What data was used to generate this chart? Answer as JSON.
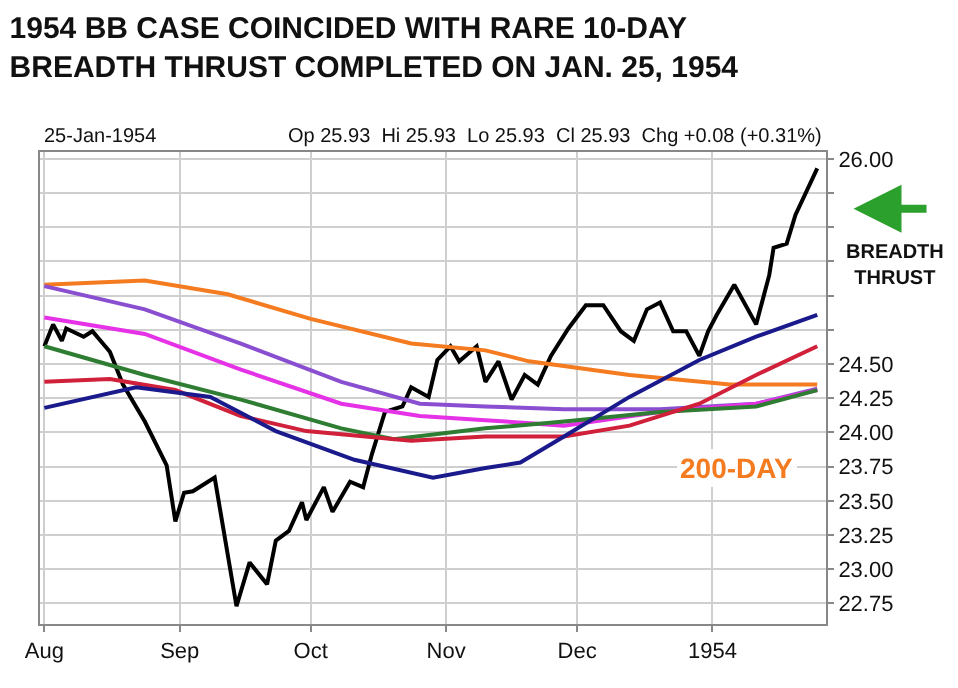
{
  "chart_data": {
    "type": "line",
    "title": "1954 BB CASE COINCIDED WITH RARE 10-DAY BREADTH THRUST COMPLETED ON JAN. 25, 1954",
    "annotations": [
      "25-Jan-1954",
      "Op 25.93  Hi 25.93  Lo 25.93  Cl 25.93  Chg +0.08 (+0.31%)",
      "BREADTH THRUST",
      "200-DAY"
    ],
    "series": [
      {
        "color": "#000000",
        "x": [
          "1953-08-01",
          "1953-08-03",
          "1953-08-05",
          "1953-08-06",
          "1953-08-10",
          "1953-08-12",
          "1953-08-16",
          "1953-08-19",
          "1953-08-24",
          "1953-08-29",
          "1953-08-31",
          "1953-09-02",
          "1953-09-04",
          "1953-09-09",
          "1953-09-14",
          "1953-09-17",
          "1953-09-21",
          "1953-09-23",
          "1953-09-26",
          "1953-09-29",
          "1953-09-30",
          "1953-10-04",
          "1953-10-06",
          "1953-10-10",
          "1953-10-13",
          "1953-10-15",
          "1953-10-18",
          "1953-10-22",
          "1953-10-24",
          "1953-10-28",
          "1953-10-30",
          "1953-11-02",
          "1953-11-04",
          "1953-11-08",
          "1953-11-10",
          "1953-11-13",
          "1953-11-16",
          "1953-11-19",
          "1953-11-22",
          "1953-11-25",
          "1953-11-29",
          "1953-12-03",
          "1953-12-07",
          "1953-12-11",
          "1953-12-14",
          "1953-12-17",
          "1953-12-20",
          "1953-12-23",
          "1953-12-26",
          "1953-12-29",
          "1953-12-31",
          "1954-01-02",
          "1954-01-06",
          "1954-01-11",
          "1954-01-14",
          "1954-01-15",
          "1954-01-18",
          "1954-01-20",
          "1954-01-25"
        ],
        "values": [
          24.63,
          24.79,
          24.67,
          24.76,
          24.7,
          24.74,
          24.59,
          24.35,
          24.08,
          23.76,
          23.35,
          23.56,
          23.57,
          23.67,
          22.73,
          23.05,
          22.89,
          23.21,
          23.28,
          23.49,
          23.36,
          23.6,
          23.42,
          23.64,
          23.6,
          23.84,
          24.15,
          24.19,
          24.33,
          24.26,
          24.53,
          24.63,
          24.52,
          24.63,
          24.37,
          24.52,
          24.24,
          24.42,
          24.35,
          24.56,
          24.76,
          24.93,
          24.93,
          24.74,
          24.67,
          24.9,
          24.95,
          24.74,
          24.74,
          24.56,
          24.74,
          24.86,
          25.08,
          24.79,
          25.15,
          25.35,
          25.38,
          25.59,
          25.93
        ]
      },
      {
        "color": "#f47b20",
        "x": [
          "1953-08-01",
          "1953-08-24",
          "1953-09-12",
          "1953-10-01",
          "1953-10-24",
          "1953-11-10",
          "1953-11-20",
          "1953-12-13",
          "1954-01-05",
          "1954-01-25"
        ],
        "values": [
          25.08,
          25.11,
          25.01,
          24.83,
          24.65,
          24.6,
          24.52,
          24.42,
          24.35,
          24.35
        ]
      },
      {
        "color": "#8a4fd0",
        "x": [
          "1953-08-01",
          "1953-08-24",
          "1953-09-15",
          "1953-10-08",
          "1953-10-26",
          "1953-11-10",
          "1953-11-28",
          "1953-12-20",
          "1954-01-11",
          "1954-01-25"
        ],
        "values": [
          25.07,
          24.9,
          24.65,
          24.37,
          24.21,
          24.19,
          24.17,
          24.17,
          24.21,
          24.32
        ]
      },
      {
        "color": "#e632e6",
        "x": [
          "1953-08-01",
          "1953-08-24",
          "1953-09-15",
          "1953-10-08",
          "1953-10-26",
          "1953-11-10",
          "1953-11-28",
          "1953-12-20",
          "1954-01-11",
          "1954-01-25"
        ],
        "values": [
          24.84,
          24.72,
          24.46,
          24.21,
          24.12,
          24.09,
          24.05,
          24.15,
          24.21,
          24.31
        ]
      },
      {
        "color": "#2e7d32",
        "x": [
          "1953-08-01",
          "1953-08-24",
          "1953-09-15",
          "1953-10-08",
          "1953-10-20",
          "1953-11-10",
          "1953-11-28",
          "1953-12-20",
          "1954-01-11",
          "1954-01-25"
        ],
        "values": [
          24.63,
          24.42,
          24.24,
          24.03,
          23.95,
          24.03,
          24.08,
          24.15,
          24.19,
          24.31
        ]
      },
      {
        "color": "#d0203a",
        "x": [
          "1953-08-01",
          "1953-08-16",
          "1953-08-31",
          "1953-09-15",
          "1953-09-30",
          "1953-10-24",
          "1953-11-10",
          "1953-11-28",
          "1953-12-13",
          "1953-12-29",
          "1954-01-11",
          "1954-01-25"
        ],
        "values": [
          24.37,
          24.39,
          24.31,
          24.12,
          24.01,
          23.94,
          23.97,
          23.97,
          24.05,
          24.21,
          24.42,
          24.63
        ]
      },
      {
        "color": "#1a1a8c",
        "x": [
          "1953-08-01",
          "1953-08-22",
          "1953-09-08",
          "1953-09-23",
          "1953-10-11",
          "1953-10-29",
          "1953-11-10",
          "1953-11-18",
          "1953-11-28",
          "1953-12-13",
          "1953-12-29",
          "1954-01-11",
          "1954-01-25"
        ],
        "values": [
          24.18,
          24.33,
          24.26,
          24.01,
          23.8,
          23.67,
          23.74,
          23.78,
          23.97,
          24.26,
          24.53,
          24.7,
          24.86
        ]
      }
    ],
    "xlim": [
      "1953-07-31",
      "1954-01-27"
    ],
    "xticks": [
      {
        "value": "1953-08-01",
        "label": "Aug"
      },
      {
        "value": "1953-09-01",
        "label": "Sep"
      },
      {
        "value": "1953-10-01",
        "label": "Oct"
      },
      {
        "value": "1953-11-01",
        "label": "Nov"
      },
      {
        "value": "1953-12-01",
        "label": "Dec"
      },
      {
        "value": "1954-01-01",
        "label": "1954"
      }
    ],
    "ylim": [
      22.6,
      26.05
    ],
    "yticks": [
      22.75,
      {
        "value": 23.0,
        "label": "23.00"
      },
      23.25,
      {
        "value": 23.5,
        "label": "23.50"
      },
      23.75,
      {
        "value": 24.0,
        "label": "24.00"
      },
      24.25,
      {
        "value": 24.5,
        "label": "24.50"
      },
      {
        "value": 24.75,
        "label": null
      },
      {
        "value": 25.0,
        "label": null
      },
      {
        "value": 25.25,
        "label": null
      },
      {
        "value": 25.5,
        "label": null
      },
      {
        "value": 25.75,
        "label": null
      },
      {
        "value": 26.0,
        "label": "26.00"
      }
    ],
    "grid": true,
    "marker": "none",
    "line_style": "solid"
  }
}
